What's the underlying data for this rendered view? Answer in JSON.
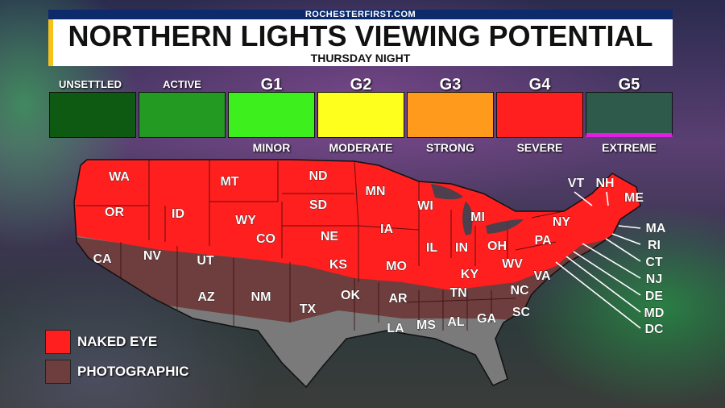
{
  "header": {
    "source": "ROCHESTERFIRST.COM",
    "title": "NORTHERN LIGHTS VIEWING POTENTIAL",
    "subtitle": "THURSDAY NIGHT"
  },
  "scale": [
    {
      "top": "UNSETTLED",
      "bottom": "",
      "color": "#0f5a12"
    },
    {
      "top": "ACTIVE",
      "bottom": "",
      "color": "#239a22"
    },
    {
      "top": "G1",
      "bottom": "MINOR",
      "color": "#3df01d"
    },
    {
      "top": "G2",
      "bottom": "MODERATE",
      "color": "#ffff1e"
    },
    {
      "top": "G3",
      "bottom": "STRONG",
      "color": "#ff9a1c"
    },
    {
      "top": "G4",
      "bottom": "SEVERE",
      "color": "#ff1f1f"
    },
    {
      "top": "G5",
      "bottom": "EXTREME",
      "color": "#2e5a4c"
    }
  ],
  "legend": {
    "naked_eye": "NAKED EYE",
    "photographic": "PHOTOGRAPHIC",
    "naked_color": "#ff1f1f",
    "photo_color": "#6e3d3d"
  },
  "states": {
    "WA": "WA",
    "OR": "OR",
    "ID": "ID",
    "MT": "MT",
    "WY": "WY",
    "ND": "ND",
    "SD": "SD",
    "NE": "NE",
    "MN": "MN",
    "IA": "IA",
    "WI": "WI",
    "MI": "MI",
    "IL": "IL",
    "IN": "IN",
    "OH": "OH",
    "PA": "PA",
    "NY": "NY",
    "VT": "VT",
    "NH": "NH",
    "ME": "ME",
    "MA": "MA",
    "RI": "RI",
    "CT": "CT",
    "NJ": "NJ",
    "DE": "DE",
    "MD": "MD",
    "DC": "DC",
    "WV": "WV",
    "VA": "VA",
    "KY": "KY",
    "MO": "MO",
    "KS": "KS",
    "CO": "CO",
    "UT": "UT",
    "NV": "NV",
    "CA": "CA",
    "AZ": "AZ",
    "NM": "NM",
    "TX": "TX",
    "OK": "OK",
    "AR": "AR",
    "LA": "LA",
    "MS": "MS",
    "AL": "AL",
    "GA": "GA",
    "TN": "TN",
    "NC": "NC",
    "SC": "SC"
  }
}
